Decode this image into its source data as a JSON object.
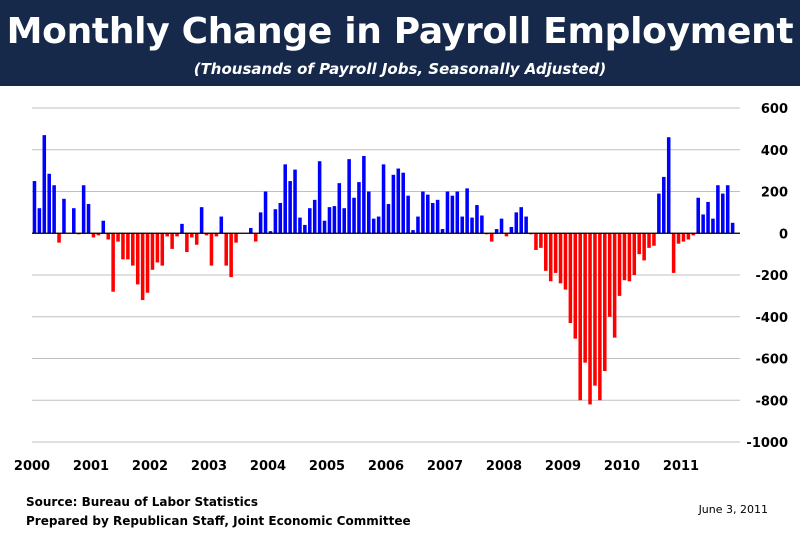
{
  "header": {
    "title": "Monthly Change in Payroll Employment",
    "subtitle": "(Thousands of Payroll Jobs, Seasonally Adjusted)"
  },
  "footer": {
    "source": "Source:  Bureau of Labor Statistics",
    "prepared_by": "Prepared by Republican Staff, Joint Economic Committee",
    "date": "June 3, 2011"
  },
  "colors": {
    "header_bg": "#16294a",
    "positive": "#0000ff",
    "negative": "#ff0000",
    "grid": "#c0c0c0"
  },
  "chart_data": {
    "type": "bar",
    "title": "Monthly Change in Payroll Employment",
    "subtitle": "(Thousands of Payroll Jobs, Seasonally Adjusted)",
    "xlabel": "",
    "ylabel": "",
    "start": "2000-01",
    "end": "2011-05",
    "ylim": [
      -1000,
      600
    ],
    "yticks": [
      600,
      400,
      200,
      0,
      -200,
      -400,
      -600,
      -800,
      -1000
    ],
    "ytick_labels": [
      "600",
      "400",
      "200",
      "0",
      "-200",
      "-400",
      "-600",
      "-800",
      "-1000"
    ],
    "xtick_labels": [
      "2000",
      "2001",
      "2002",
      "2003",
      "2004",
      "2005",
      "2006",
      "2007",
      "2008",
      "2009",
      "2010",
      "2011"
    ],
    "y_axis_position": "right",
    "grid": true,
    "color_rule": "positive values blue, negative values red",
    "values": [
      250,
      120,
      470,
      285,
      230,
      -45,
      165,
      0,
      120,
      -5,
      230,
      140,
      -20,
      -10,
      60,
      -30,
      -280,
      -40,
      -125,
      -125,
      -155,
      -245,
      -320,
      -285,
      -175,
      -140,
      -155,
      -15,
      -75,
      -15,
      45,
      -90,
      -20,
      -55,
      125,
      -10,
      -155,
      -15,
      80,
      -155,
      -210,
      -45,
      0,
      0,
      25,
      -40,
      100,
      200,
      10,
      115,
      145,
      330,
      250,
      305,
      75,
      40,
      120,
      160,
      345,
      60,
      125,
      130,
      240,
      120,
      355,
      170,
      245,
      370,
      200,
      70,
      80,
      330,
      140,
      280,
      310,
      290,
      180,
      15,
      80,
      200,
      185,
      145,
      160,
      20,
      200,
      180,
      200,
      80,
      215,
      75,
      135,
      85,
      -5,
      -40,
      20,
      70,
      -15,
      30,
      100,
      125,
      80,
      -5,
      -80,
      -70,
      -180,
      -230,
      -190,
      -240,
      -270,
      -430,
      -505,
      -800,
      -620,
      -820,
      -730,
      -800,
      -660,
      -400,
      -500,
      -300,
      -225,
      -230,
      -200,
      -100,
      -130,
      -70,
      -60,
      190,
      270,
      460,
      -190,
      -50,
      -40,
      -30,
      -10,
      170,
      90,
      150,
      70,
      230,
      190,
      230,
      50,
      0
    ]
  }
}
